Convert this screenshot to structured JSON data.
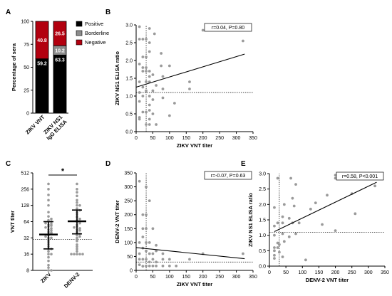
{
  "panels": [
    {
      "id": "A",
      "type": "bar",
      "stacked": true,
      "categories": [
        "ZIKV VNT",
        "ZIKV NS1\nIgG ELISA"
      ],
      "ylabel": "Percentage of sera",
      "ylim": [
        0,
        100
      ],
      "yticks": [
        0,
        25,
        50,
        75,
        100
      ],
      "series": [
        {
          "name": "Positive",
          "values": [
            59.2,
            63.3
          ],
          "color": "#000000",
          "labels": [
            "59.2",
            "63.3"
          ]
        },
        {
          "name": "Borderline",
          "values": [
            0,
            10.2
          ],
          "color": "#8c8c8c",
          "labels": [
            "",
            "10.2"
          ]
        },
        {
          "name": "Negative",
          "values": [
            40.8,
            26.5
          ],
          "color": "#b2000f",
          "labels": [
            "40.8",
            "26.5"
          ]
        }
      ],
      "legend_placement": "right"
    },
    {
      "id": "B",
      "type": "scatter",
      "xlabel": "ZIKV VNT titer",
      "ylabel": "ZIKV NS1 ELISA ratio",
      "xlim": [
        0,
        350
      ],
      "ylim": [
        0,
        3.0
      ],
      "xticks": [
        0,
        50,
        100,
        150,
        200,
        250,
        300,
        350
      ],
      "yticks": [
        0.0,
        0.5,
        1.0,
        1.5,
        2.0,
        2.5,
        3.0
      ],
      "ytick_labels": [
        "0.0",
        "0.5",
        "1.0",
        "1.5",
        "2.0",
        "2.5",
        "3.0"
      ],
      "stat": "r=0.04, P=0.80",
      "cutoff_x": 30,
      "cutoff_y": 1.1,
      "regression": {
        "x": [
          0,
          325
        ],
        "y": [
          1.25,
          2.18
        ]
      },
      "points": [
        [
          10,
          2.95
        ],
        [
          10,
          2.6
        ],
        [
          10,
          1.9
        ],
        [
          10,
          1.4
        ],
        [
          10,
          1.1
        ],
        [
          10,
          0.85
        ],
        [
          10,
          0.4
        ],
        [
          10,
          0.35
        ],
        [
          20,
          2.6
        ],
        [
          20,
          2.1
        ],
        [
          20,
          1.8
        ],
        [
          20,
          1.7
        ],
        [
          20,
          1.25
        ],
        [
          20,
          1.0
        ],
        [
          20,
          0.55
        ],
        [
          30,
          2.6
        ],
        [
          30,
          2.1
        ],
        [
          30,
          1.8
        ],
        [
          30,
          1.7
        ],
        [
          30,
          1.4
        ],
        [
          30,
          1.15
        ],
        [
          30,
          0.55
        ],
        [
          30,
          0.2
        ],
        [
          40,
          2.9
        ],
        [
          40,
          2.5
        ],
        [
          40,
          2.25
        ],
        [
          40,
          1.7
        ],
        [
          40,
          1.55
        ],
        [
          40,
          1.4
        ],
        [
          40,
          1.0
        ],
        [
          40,
          0.75
        ],
        [
          40,
          0.6
        ],
        [
          40,
          0.35
        ],
        [
          40,
          0.2
        ],
        [
          50,
          1.6
        ],
        [
          50,
          1.15
        ],
        [
          50,
          0.9
        ],
        [
          50,
          0.5
        ],
        [
          55,
          2.75
        ],
        [
          60,
          1.3
        ],
        [
          60,
          0.2
        ],
        [
          75,
          2.2
        ],
        [
          75,
          1.85
        ],
        [
          80,
          1.55
        ],
        [
          80,
          1.2
        ],
        [
          80,
          0.95
        ],
        [
          100,
          1.85
        ],
        [
          100,
          0.45
        ],
        [
          115,
          0.8
        ],
        [
          160,
          1.4
        ],
        [
          160,
          1.2
        ],
        [
          200,
          2.85
        ],
        [
          320,
          2.55
        ]
      ]
    },
    {
      "id": "C",
      "type": "scatter",
      "categories": [
        "ZIKV",
        "DENV-2"
      ],
      "ylabel": "VNT titer",
      "log_scale": "log2",
      "ylim": [
        8,
        512
      ],
      "yticks": [
        8,
        16,
        32,
        64,
        128,
        256,
        512
      ],
      "significance": "*",
      "cutoff_y": 30,
      "summary": [
        {
          "median": 37,
          "low": 20,
          "high": 64
        },
        {
          "median": 65,
          "low": 38,
          "high": 105
        }
      ],
      "points_zikv": [
        8,
        8,
        9,
        10,
        12,
        14,
        16,
        16,
        18,
        20,
        20,
        22,
        24,
        26,
        28,
        30,
        32,
        32,
        34,
        36,
        38,
        40,
        40,
        42,
        44,
        46,
        48,
        50,
        52,
        54,
        56,
        58,
        60,
        64,
        64,
        68,
        72,
        80,
        96,
        128,
        160,
        200,
        256,
        320
      ],
      "points_denv2": [
        16,
        16,
        16,
        16,
        16,
        18,
        20,
        22,
        24,
        28,
        30,
        32,
        34,
        36,
        38,
        40,
        42,
        44,
        46,
        48,
        50,
        52,
        56,
        60,
        64,
        64,
        68,
        72,
        76,
        80,
        88,
        96,
        104,
        112,
        128,
        128,
        144,
        160,
        192,
        224,
        256,
        320
      ]
    },
    {
      "id": "D",
      "type": "scatter",
      "xlabel": "ZIKV VNT titer",
      "ylabel": "DENV-2 VNT titer",
      "xlim": [
        0,
        350
      ],
      "ylim": [
        0,
        350
      ],
      "xticks": [
        0,
        50,
        100,
        150,
        200,
        250,
        300,
        350
      ],
      "yticks": [
        0,
        50,
        100,
        150,
        200,
        250,
        300,
        350
      ],
      "stat": "r=-0.07, P=0.63",
      "cutoff_x": 30,
      "cutoff_y": 30,
      "regression": {
        "x": [
          0,
          325
        ],
        "y": [
          82,
          42
        ]
      },
      "points": [
        [
          10,
          320
        ],
        [
          10,
          100
        ],
        [
          10,
          60
        ],
        [
          10,
          40
        ],
        [
          10,
          20
        ],
        [
          20,
          200
        ],
        [
          20,
          150
        ],
        [
          20,
          120
        ],
        [
          20,
          80
        ],
        [
          20,
          40
        ],
        [
          20,
          15
        ],
        [
          30,
          300
        ],
        [
          30,
          200
        ],
        [
          30,
          150
        ],
        [
          30,
          100
        ],
        [
          30,
          70
        ],
        [
          30,
          40
        ],
        [
          30,
          16
        ],
        [
          40,
          250
        ],
        [
          40,
          100
        ],
        [
          40,
          60
        ],
        [
          40,
          30
        ],
        [
          40,
          16
        ],
        [
          50,
          150
        ],
        [
          50,
          60
        ],
        [
          50,
          40
        ],
        [
          50,
          16
        ],
        [
          60,
          90
        ],
        [
          60,
          70
        ],
        [
          60,
          30
        ],
        [
          60,
          16
        ],
        [
          80,
          60
        ],
        [
          80,
          40
        ],
        [
          80,
          16
        ],
        [
          100,
          40
        ],
        [
          100,
          16
        ],
        [
          120,
          16
        ],
        [
          160,
          40
        ],
        [
          200,
          60
        ],
        [
          320,
          60
        ]
      ]
    },
    {
      "id": "E",
      "type": "scatter",
      "xlabel": "DENV-2 VNT titer",
      "ylabel": "ZIKV NS1 ELISA ratio",
      "xlim": [
        0,
        350
      ],
      "ylim": [
        0,
        3.0
      ],
      "xticks": [
        0,
        50,
        100,
        150,
        200,
        250,
        300,
        350
      ],
      "yticks": [
        0.0,
        0.5,
        1.0,
        1.5,
        2.0,
        2.5,
        3.0
      ],
      "ytick_labels": [
        "0.0",
        "0.5",
        "1.0",
        "1.5",
        "2.0",
        "2.5",
        "3.0"
      ],
      "stat": "r=0.58, P<0.001",
      "cutoff_x": 30,
      "cutoff_y": 1.1,
      "regression": {
        "x": [
          15,
          325
        ],
        "y": [
          1.12,
          2.72
        ]
      },
      "points": [
        [
          15,
          0.25
        ],
        [
          15,
          0.35
        ],
        [
          15,
          0.5
        ],
        [
          15,
          0.6
        ],
        [
          15,
          1.0
        ],
        [
          15,
          1.3
        ],
        [
          15,
          1.9
        ],
        [
          25,
          0.6
        ],
        [
          25,
          0.75
        ],
        [
          25,
          1.4
        ],
        [
          25,
          2.85
        ],
        [
          30,
          0.45
        ],
        [
          30,
          0.7
        ],
        [
          40,
          0.3
        ],
        [
          40,
          1.05
        ],
        [
          40,
          1.4
        ],
        [
          40,
          1.6
        ],
        [
          45,
          0.8
        ],
        [
          45,
          2.0
        ],
        [
          60,
          0.95
        ],
        [
          60,
          1.55
        ],
        [
          65,
          2.85
        ],
        [
          70,
          1.4
        ],
        [
          70,
          2.2
        ],
        [
          75,
          1.95
        ],
        [
          80,
          2.65
        ],
        [
          80,
          1.05
        ],
        [
          90,
          1.4
        ],
        [
          110,
          0.2
        ],
        [
          125,
          1.85
        ],
        [
          140,
          2.05
        ],
        [
          160,
          1.35
        ],
        [
          175,
          2.3
        ],
        [
          200,
          2.95
        ],
        [
          200,
          2.85
        ],
        [
          200,
          1.15
        ],
        [
          250,
          2.35
        ],
        [
          260,
          1.7
        ],
        [
          320,
          2.6
        ]
      ]
    }
  ]
}
